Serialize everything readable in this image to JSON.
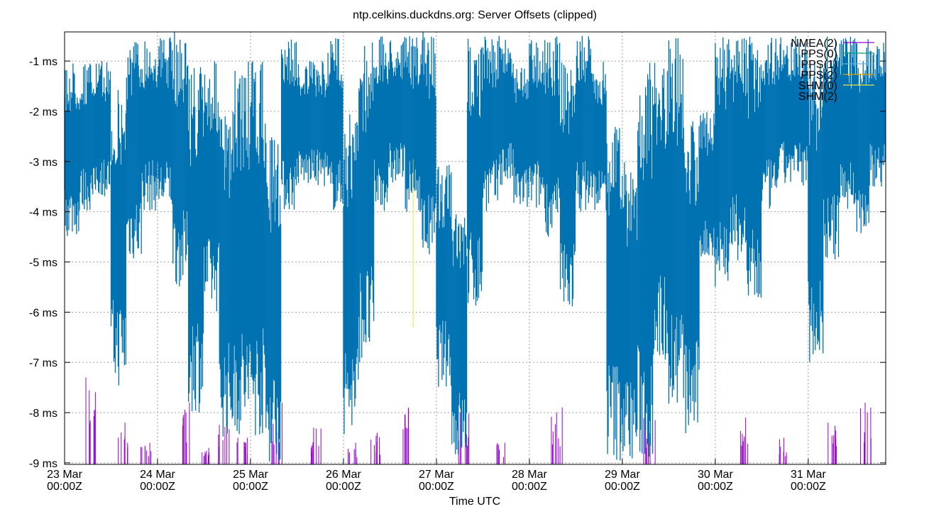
{
  "chart_data": {
    "type": "line",
    "title": "ntp.celkins.duckdns.org: Server Offsets (clipped)",
    "xlabel": "Time UTC",
    "ylabel": "",
    "ylim": [
      -9.03,
      -0.42
    ],
    "xlim": [
      "23 Mar 00Z",
      "31 Mar 20Z"
    ],
    "grid": true,
    "legend_position": "top-right",
    "y_ticks": [
      {
        "value": -1,
        "label": "-1 ms"
      },
      {
        "value": -2,
        "label": "-2 ms"
      },
      {
        "value": -3,
        "label": "-3 ms"
      },
      {
        "value": -4,
        "label": "-4 ms"
      },
      {
        "value": -5,
        "label": "-5 ms"
      },
      {
        "value": -6,
        "label": "-6 ms"
      },
      {
        "value": -7,
        "label": "-7 ms"
      },
      {
        "value": -8,
        "label": "-8 ms"
      },
      {
        "value": -9,
        "label": "-9 ms"
      }
    ],
    "x_ticks": [
      {
        "date": "23 Mar",
        "time": "00:00Z"
      },
      {
        "date": "24 Mar",
        "time": "00:00Z"
      },
      {
        "date": "25 Mar",
        "time": "00:00Z"
      },
      {
        "date": "26 Mar",
        "time": "00:00Z"
      },
      {
        "date": "27 Mar",
        "time": "00:00Z"
      },
      {
        "date": "28 Mar",
        "time": "00:00Z"
      },
      {
        "date": "29 Mar",
        "time": "00:00Z"
      },
      {
        "date": "30 Mar",
        "time": "00:00Z"
      },
      {
        "date": "31 Mar",
        "time": "00:00Z"
      }
    ],
    "series": [
      {
        "name": "NMEA(2)",
        "color": "#9400d3",
        "kind": "spikes",
        "points": [
          [
            "23 Mar 07Z",
            -7.3
          ],
          [
            "23 Mar 15Z",
            -8.2
          ],
          [
            "23 Mar 21Z",
            -8.6
          ],
          [
            "24 Mar 07Z",
            -7.8
          ],
          [
            "24 Mar 12Z",
            -8.7
          ],
          [
            "24 Mar 17Z",
            -8.2
          ],
          [
            "24 Mar 22Z",
            -8.5
          ],
          [
            "25 Mar 07Z",
            -7.8
          ],
          [
            "25 Mar 17Z",
            -8.3
          ],
          [
            "26 Mar 02Z",
            -8.6
          ],
          [
            "26 Mar 08Z",
            -8.4
          ],
          [
            "26 Mar 16Z",
            -7.9
          ],
          [
            "27 Mar 07Z",
            -8.0
          ],
          [
            "27 Mar 17Z",
            -8.6
          ],
          [
            "28 Mar 07Z",
            -7.9
          ],
          [
            "29 Mar 07Z",
            -8.1
          ],
          [
            "30 Mar 07Z",
            -8.1
          ],
          [
            "30 Mar 17Z",
            -8.5
          ],
          [
            "31 Mar 06Z",
            -8.2
          ],
          [
            "31 Mar 15Z",
            -7.8
          ]
        ]
      },
      {
        "name": "PPS(0)",
        "color": "#009e73",
        "kind": "none",
        "points": []
      },
      {
        "name": "PPS(1)",
        "color": "#56b4e9",
        "kind": "none",
        "points": []
      },
      {
        "name": "PPS(2)",
        "color": "#e69f00",
        "kind": "range",
        "points": [
          [
            "24 Mar 13Z",
            -2.7,
            -3.0
          ]
        ]
      },
      {
        "name": "SHM(0)",
        "color": "#f0e442",
        "kind": "range",
        "points": [
          [
            "26 Mar 18Z",
            -2.1,
            -6.3
          ]
        ]
      },
      {
        "name": "SHM(2)",
        "color": "#0072b2",
        "kind": "envelope",
        "points": [
          [
            "23 Mar 00Z",
            -1,
            -4.5
          ],
          [
            "23 Mar 04Z",
            -1,
            -4
          ],
          [
            "23 Mar 08Z",
            -1,
            -3.7
          ],
          [
            "23 Mar 12Z",
            -1.5,
            -7.5
          ],
          [
            "23 Mar 16Z",
            -0.5,
            -5
          ],
          [
            "23 Mar 20Z",
            -0.5,
            -4
          ],
          [
            "24 Mar 00Z",
            -0.5,
            -4
          ],
          [
            "24 Mar 04Z",
            -0.4,
            -5.5
          ],
          [
            "24 Mar 08Z",
            -1,
            -8
          ],
          [
            "24 Mar 12Z",
            -1,
            -6
          ],
          [
            "24 Mar 16Z",
            -2,
            -8.5
          ],
          [
            "24 Mar 20Z",
            -1,
            -8.5
          ],
          [
            "25 Mar 00Z",
            -1,
            -8.5
          ],
          [
            "25 Mar 04Z",
            -2.5,
            -9
          ],
          [
            "25 Mar 08Z",
            -0.5,
            -4
          ],
          [
            "25 Mar 12Z",
            -1,
            -3.5
          ],
          [
            "25 Mar 16Z",
            -1,
            -3.5
          ],
          [
            "25 Mar 20Z",
            -0.5,
            -4
          ],
          [
            "26 Mar 00Z",
            -2,
            -8.5
          ],
          [
            "26 Mar 04Z",
            -0.5,
            -7
          ],
          [
            "26 Mar 08Z",
            -0.5,
            -4
          ],
          [
            "26 Mar 12Z",
            -0.5,
            -3.5
          ],
          [
            "26 Mar 16Z",
            -0.5,
            -4
          ],
          [
            "26 Mar 20Z",
            -0.4,
            -5
          ],
          [
            "27 Mar 00Z",
            -3,
            -7.5
          ],
          [
            "27 Mar 04Z",
            -4,
            -9
          ],
          [
            "27 Mar 08Z",
            -0.5,
            -6
          ],
          [
            "27 Mar 12Z",
            -0.5,
            -4
          ],
          [
            "27 Mar 16Z",
            -0.5,
            -3.5
          ],
          [
            "27 Mar 20Z",
            -1,
            -4
          ],
          [
            "28 Mar 00Z",
            -0.5,
            -4
          ],
          [
            "28 Mar 04Z",
            -0.5,
            -4.5
          ],
          [
            "28 Mar 08Z",
            -1,
            -6
          ],
          [
            "28 Mar 12Z",
            -0.5,
            -4
          ],
          [
            "28 Mar 16Z",
            -1,
            -4
          ],
          [
            "28 Mar 20Z",
            -2,
            -9
          ],
          [
            "29 Mar 00Z",
            -3,
            -9
          ],
          [
            "29 Mar 04Z",
            -1,
            -9
          ],
          [
            "29 Mar 08Z",
            -1,
            -7
          ],
          [
            "29 Mar 12Z",
            -0.5,
            -8
          ],
          [
            "29 Mar 16Z",
            -2,
            -8.5
          ],
          [
            "29 Mar 20Z",
            -2,
            -5
          ],
          [
            "30 Mar 00Z",
            -0.5,
            -5.5
          ],
          [
            "30 Mar 04Z",
            -0.5,
            -5
          ],
          [
            "30 Mar 08Z",
            -0.5,
            -6
          ],
          [
            "30 Mar 12Z",
            -0.5,
            -4
          ],
          [
            "30 Mar 16Z",
            -0.5,
            -3.5
          ],
          [
            "30 Mar 20Z",
            -0.5,
            -3.5
          ],
          [
            "31 Mar 00Z",
            -1,
            -7
          ],
          [
            "31 Mar 04Z",
            -0.5,
            -5
          ],
          [
            "31 Mar 08Z",
            -0.5,
            -4
          ],
          [
            "31 Mar 12Z",
            -0.5,
            -4.5
          ],
          [
            "31 Mar 16Z",
            -0.5,
            -3.5
          ]
        ]
      }
    ]
  }
}
